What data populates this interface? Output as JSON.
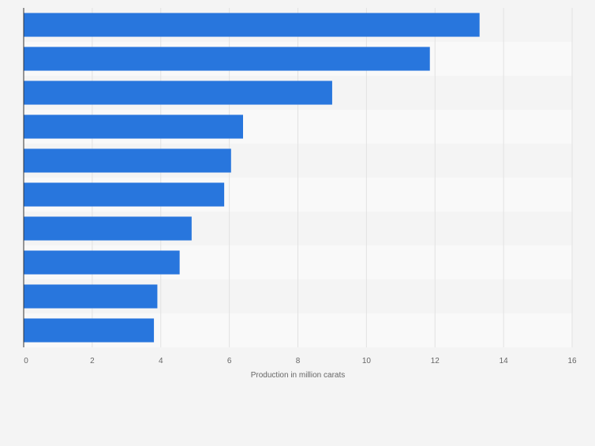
{
  "chart_data": {
    "type": "bar",
    "orientation": "horizontal",
    "categories": [
      "",
      "",
      "",
      "",
      "",
      "",
      "",
      "",
      "",
      ""
    ],
    "values": [
      13.3,
      11.85,
      9.0,
      6.4,
      6.05,
      5.85,
      4.9,
      4.55,
      3.9,
      3.8
    ],
    "title": "",
    "xlabel": "Production in million carats",
    "ylabel": "",
    "xlim": [
      0,
      16
    ],
    "xticks": [
      "0",
      "2",
      "4",
      "6",
      "8",
      "10",
      "12",
      "14",
      "16"
    ],
    "grid": true,
    "colors": {
      "bar": "#2876dd",
      "band_light": "#f9f9f9",
      "band_dark": "#f4f4f4",
      "gridline": "#e2e2e2",
      "axis": "#333333",
      "tick_label": "#666666"
    }
  }
}
